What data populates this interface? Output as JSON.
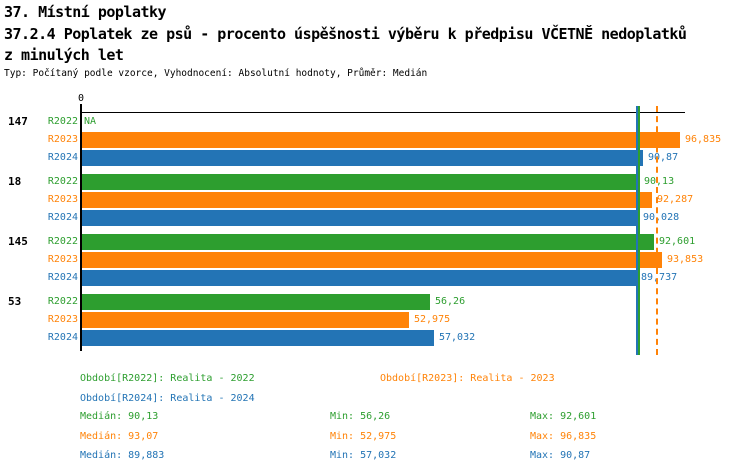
{
  "header": {
    "line1": "37. Místní poplatky",
    "line2": "37.2.4 Poplatek ze psů - procento úspěšnosti výběru k předpisu VČETNĚ nedoplatků",
    "line3": "z minulých let",
    "subtitle": "Typ: Počítaný podle vzorce, Vyhodnocení: Absolutní hodnoty, Průměr: Medián"
  },
  "colors": {
    "R2022": "#2d9e2f",
    "R2023": "#ff8308",
    "R2024": "#2374b5",
    "axis": "#000000"
  },
  "chart_data": {
    "type": "bar",
    "orientation": "horizontal",
    "title": "37.2.4 Poplatek ze psů - procento úspěšnosti výběru k předpisu VČETNĚ nedoplatků z minulých let",
    "x_tick_labels": [
      "0"
    ],
    "xlim": [
      0,
      97.6
    ],
    "grid": false,
    "na_text": "NA",
    "series_names": [
      "R2022",
      "R2023",
      "R2024"
    ],
    "groups": [
      {
        "label": "147",
        "values": [
          null,
          96.835,
          90.87
        ],
        "displays": [
          "NA",
          "96,835",
          "90,87"
        ]
      },
      {
        "label": "18",
        "values": [
          90.13,
          92.287,
          90.028
        ],
        "displays": [
          "90,13",
          "92,287",
          "90,028"
        ]
      },
      {
        "label": "145",
        "values": [
          92.601,
          93.853,
          89.737
        ],
        "displays": [
          "92,601",
          "93,853",
          "89,737"
        ]
      },
      {
        "label": "53",
        "values": [
          56.26,
          52.975,
          57.032
        ],
        "displays": [
          "56,26",
          "52,975",
          "57,032"
        ]
      }
    ],
    "median_lines": [
      {
        "series": "R2024",
        "value": 89.883,
        "style": "solid"
      },
      {
        "series": "R2022",
        "value": 90.13,
        "style": "solid"
      },
      {
        "series": "R2023",
        "value": 93.07,
        "style": "dashed"
      }
    ]
  },
  "legend": [
    {
      "series": "R2022",
      "label": "Období[R2022]: Realita - 2022"
    },
    {
      "series": "R2023",
      "label": "Období[R2023]: Realita - 2023"
    },
    {
      "series": "R2024",
      "label": "Období[R2024]: Realita - 2024"
    }
  ],
  "stats": [
    {
      "series": "R2022",
      "median": "Medián: 90,13",
      "min": "Min: 56,26",
      "max": "Max: 92,601"
    },
    {
      "series": "R2023",
      "median": "Medián: 93,07",
      "min": "Min: 52,975",
      "max": "Max: 96,835"
    },
    {
      "series": "R2024",
      "median": "Medián: 89,883",
      "min": "Min: 57,032",
      "max": "Max: 90,87"
    }
  ]
}
